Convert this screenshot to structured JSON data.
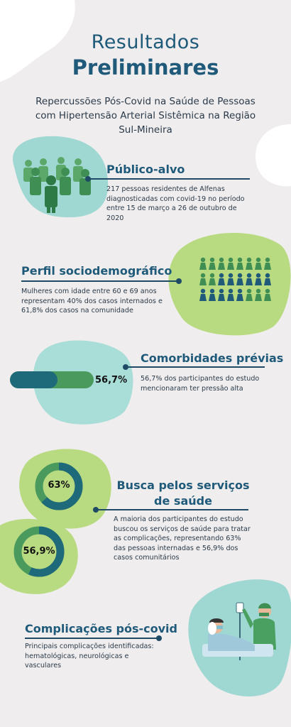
{
  "header": {
    "title_line1": "Resultados",
    "title_line2": "Preliminares",
    "subtitle": "Repercussões Pós-Covid na Saúde de Pessoas com Hipertensão Arterial Sistêmica na Região Sul-Mineira"
  },
  "sections": {
    "publico": {
      "title": "Público-alvo",
      "text": "217 pessoas residentes de Alfenas diagnosticadas com covid-19 no período entre 15 de março a 26 de outubro de 2020"
    },
    "perfil": {
      "title": "Perfil sociodemográfico",
      "text": "Mulheres com idade entre 60 e 69 anos representam 40% dos casos internados e 61,8% dos casos na comunidade"
    },
    "comorbidades": {
      "title": "Comorbidades prévias",
      "text": "56,7% dos participantes do estudo mencionaram ter pressão alta",
      "bar_label": "56,7%",
      "bar_value": 0.567
    },
    "busca": {
      "title": "Busca pelos serviços de saúde",
      "text": "A maioria dos participantes do estudo buscou os serviços de saúde para tratar as complicações, representando 63% das pessoas internadas e 56,9% dos casos comunitários",
      "donut1_label": "63%",
      "donut1_value": 0.63,
      "donut2_label": "56,9%",
      "donut2_value": 0.569
    },
    "complicacoes": {
      "title": "Complicações pós-covid",
      "text": "Principais complicações identificadas: hematológicas, neurológicas e vasculares"
    }
  },
  "colors": {
    "teal_blob": "#9fd8d2",
    "green_blob": "#b3d87a",
    "navy": "#1f5a7a",
    "green": "#4a9a5e",
    "dark_teal": "#1f6a7a"
  }
}
